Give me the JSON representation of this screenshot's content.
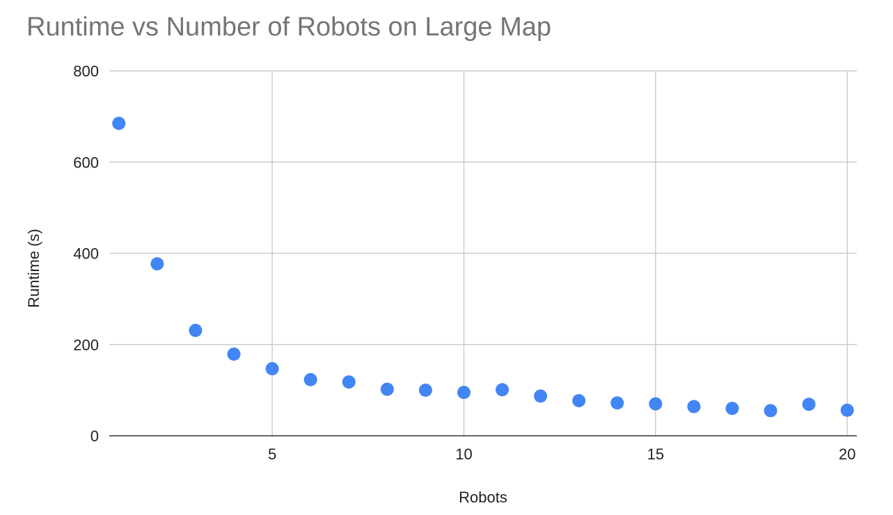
{
  "chart_data": {
    "type": "scatter",
    "title": "Runtime vs Number of Robots on Large Map",
    "xlabel": "Robots",
    "ylabel": "Runtime (s)",
    "xlim": [
      0.75,
      20.25
    ],
    "ylim": [
      0,
      800
    ],
    "x_ticks": [
      5,
      10,
      15,
      20
    ],
    "y_ticks": [
      0,
      200,
      400,
      600,
      800
    ],
    "grid": true,
    "legend": "none",
    "colors": {
      "point": "#4285f4",
      "grid": "#cccccc",
      "axis": "#333333",
      "title": "#757575"
    },
    "series": [
      {
        "x": [
          1,
          2,
          3,
          4,
          5,
          6,
          7,
          8,
          9,
          10,
          11,
          12,
          13,
          14,
          15,
          16,
          17,
          18,
          19,
          20
        ],
        "y": [
          685,
          377,
          231,
          179,
          147,
          123,
          118,
          102,
          100,
          95,
          101,
          87,
          77,
          72,
          70,
          64,
          60,
          55,
          69,
          56
        ]
      }
    ]
  }
}
